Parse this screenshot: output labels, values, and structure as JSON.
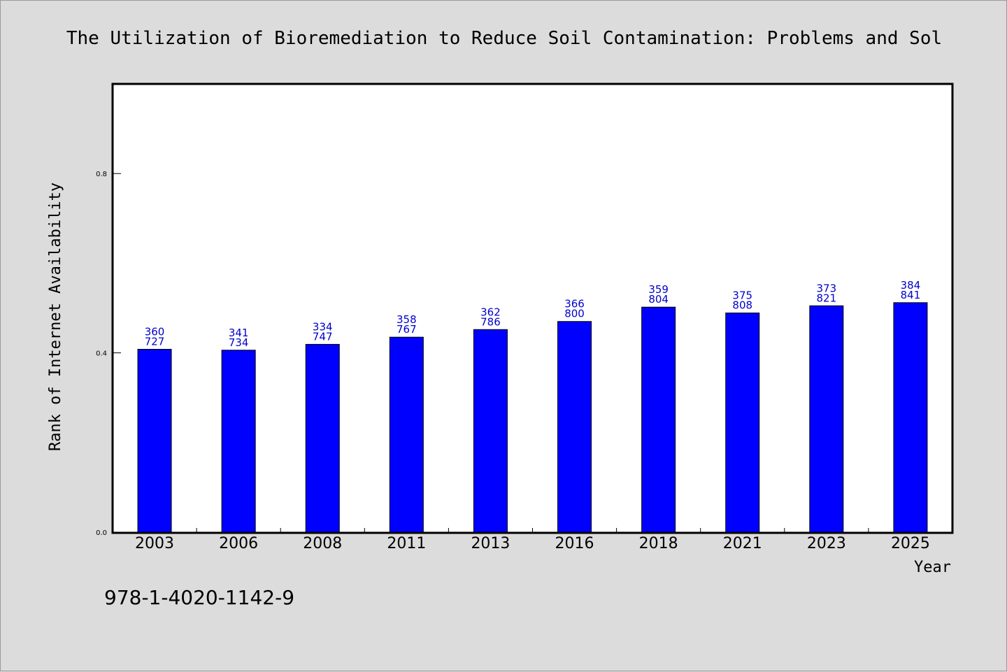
{
  "chart_data": {
    "type": "bar",
    "title": "The Utilization of Bioremediation to Reduce Soil Contamination: Problems and Sol",
    "xlabel": "Year",
    "ylabel": "Rank of Internet Availability",
    "categories": [
      "2003",
      "2006",
      "2008",
      "2011",
      "2013",
      "2016",
      "2018",
      "2021",
      "2023",
      "2025"
    ],
    "values": [
      0.408,
      0.406,
      0.419,
      0.435,
      0.452,
      0.47,
      0.502,
      0.489,
      0.505,
      0.512
    ],
    "data_labels": [
      [
        "360",
        "727"
      ],
      [
        "341",
        "734"
      ],
      [
        "334",
        "747"
      ],
      [
        "358",
        "767"
      ],
      [
        "362",
        "786"
      ],
      [
        "366",
        "800"
      ],
      [
        "359",
        "804"
      ],
      [
        "375",
        "808"
      ],
      [
        "373",
        "821"
      ],
      [
        "384",
        "841"
      ]
    ],
    "yticks": [
      0.0,
      0.4,
      0.8
    ],
    "ytick_labels": [
      "0.0",
      "0.4",
      "0.8"
    ],
    "ylim": [
      0,
      1.0
    ],
    "grid": false,
    "colors": {
      "bar": "#0000ff",
      "bar_edge": "#000000",
      "data_label": "#0000cc",
      "background": "#dcdcdc",
      "plot_bg": "#ffffff"
    }
  },
  "footnote": "978-1-4020-1142-9"
}
